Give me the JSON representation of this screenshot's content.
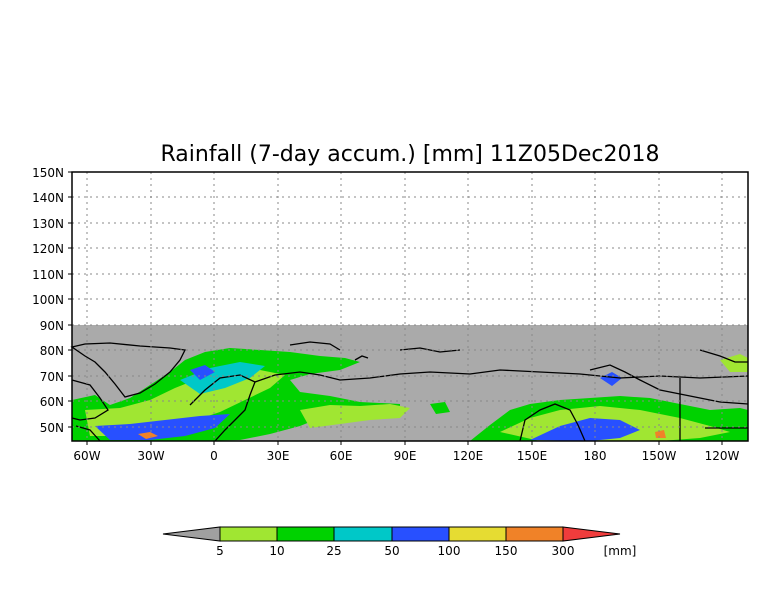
{
  "title": "Rainfall (7-day accum.) [mm] 11Z05Dec2018",
  "map": {
    "lat_labels": [
      "150N",
      "140N",
      "130N",
      "120N",
      "110N",
      "100N",
      "90N",
      "80N",
      "70N",
      "60N",
      "50N"
    ],
    "lon_labels": [
      "60W",
      "30W",
      "0",
      "30E",
      "60E",
      "90E",
      "120E",
      "150E",
      "180",
      "150W",
      "120W"
    ],
    "lat_range": [
      45,
      150
    ],
    "lon_range": [
      -68,
      251
    ],
    "missing_fill_color": "#aaaaaa",
    "grid": "dotted"
  },
  "colorbar": {
    "unit": "[mm]",
    "labels": [
      "5",
      "10",
      "25",
      "50",
      "100",
      "150",
      "300"
    ],
    "colors": [
      "#a0a0a0",
      "#a0e632",
      "#00d200",
      "#00c8c8",
      "#2850ff",
      "#e6dc32",
      "#f08228",
      "#f03c3c"
    ]
  }
}
